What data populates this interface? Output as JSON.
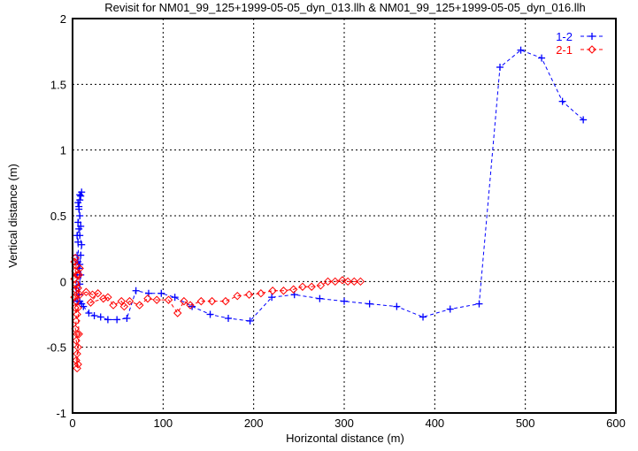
{
  "chart_data": {
    "type": "line",
    "title": "Revisit for NM01_99_125+1999-05-05_dyn_013.llh & NM01_99_125+1999-05-05_dyn_016.llh",
    "xlabel": "Horizontal distance (m)",
    "ylabel": "Vertical distance (m)",
    "xlim": [
      0,
      600
    ],
    "ylim": [
      -1,
      2
    ],
    "xticks": [
      "0",
      "100",
      "200",
      "300",
      "400",
      "500",
      "600"
    ],
    "yticks": [
      "-1",
      "-0.5",
      "0",
      "0.5",
      "1",
      "1.5",
      "2"
    ],
    "grid": true,
    "legend_position": "top-right",
    "series": [
      {
        "name": "1-2",
        "color": "#0000ff",
        "marker": "plus",
        "points": [
          [
            5,
            -0.15
          ],
          [
            4,
            -0.05
          ],
          [
            5,
            0.05
          ],
          [
            6,
            0.15
          ],
          [
            5,
            0.2
          ],
          [
            7,
            0.1
          ],
          [
            6,
            0.3
          ],
          [
            5,
            0.35
          ],
          [
            7,
            0.4
          ],
          [
            6,
            0.45
          ],
          [
            8,
            0.5
          ],
          [
            7,
            0.55
          ],
          [
            6,
            0.6
          ],
          [
            8,
            0.62
          ],
          [
            9,
            0.65
          ],
          [
            10,
            0.68
          ],
          [
            8,
            0.66
          ],
          [
            7,
            0.57
          ],
          [
            9,
            0.42
          ],
          [
            8,
            0.35
          ],
          [
            10,
            0.28
          ],
          [
            9,
            0.2
          ],
          [
            8,
            0.13
          ],
          [
            9,
            0.05
          ],
          [
            8,
            -0.02
          ],
          [
            7,
            -0.1
          ],
          [
            8,
            -0.15
          ],
          [
            10,
            -0.17
          ],
          [
            12,
            -0.19
          ],
          [
            18,
            -0.24
          ],
          [
            24,
            -0.26
          ],
          [
            31,
            -0.27
          ],
          [
            39,
            -0.29
          ],
          [
            49,
            -0.29
          ],
          [
            60,
            -0.28
          ],
          [
            70,
            -0.07
          ],
          [
            84,
            -0.09
          ],
          [
            98,
            -0.09
          ],
          [
            113,
            -0.12
          ],
          [
            132,
            -0.19
          ],
          [
            152,
            -0.25
          ],
          [
            172,
            -0.28
          ],
          [
            196,
            -0.3
          ],
          [
            220,
            -0.12
          ],
          [
            245,
            -0.1
          ],
          [
            273,
            -0.13
          ],
          [
            300,
            -0.15
          ],
          [
            328,
            -0.17
          ],
          [
            358,
            -0.19
          ],
          [
            387,
            -0.27
          ],
          [
            417,
            -0.21
          ],
          [
            449,
            -0.17
          ],
          [
            472,
            1.63
          ],
          [
            495,
            1.76
          ],
          [
            518,
            1.7
          ],
          [
            541,
            1.37
          ],
          [
            564,
            1.23
          ]
        ]
      },
      {
        "name": "2-1",
        "color": "#ff0000",
        "marker": "diamond",
        "points": [
          [
            3,
            0.18
          ],
          [
            2,
            0.15
          ],
          [
            4,
            0.12
          ],
          [
            3,
            0.08
          ],
          [
            5,
            0.05
          ],
          [
            2,
            0.02
          ],
          [
            4,
            -0.02
          ],
          [
            3,
            -0.06
          ],
          [
            5,
            -0.1
          ],
          [
            2,
            -0.12
          ],
          [
            4,
            -0.15
          ],
          [
            3,
            -0.2
          ],
          [
            5,
            -0.25
          ],
          [
            4,
            -0.3
          ],
          [
            3,
            -0.36
          ],
          [
            5,
            -0.4
          ],
          [
            4,
            -0.45
          ],
          [
            6,
            -0.5
          ],
          [
            5,
            -0.55
          ],
          [
            4,
            -0.6
          ],
          [
            6,
            -0.63
          ],
          [
            5,
            -0.66
          ],
          [
            7,
            -0.4
          ],
          [
            6,
            -0.2
          ],
          [
            7,
            0.05
          ],
          [
            8,
            0.1
          ],
          [
            6,
            -0.05
          ],
          [
            8,
            -0.1
          ],
          [
            15,
            -0.08
          ],
          [
            22,
            -0.1
          ],
          [
            28,
            -0.09
          ],
          [
            20,
            -0.16
          ],
          [
            34,
            -0.13
          ],
          [
            39,
            -0.12
          ],
          [
            45,
            -0.18
          ],
          [
            54,
            -0.15
          ],
          [
            57,
            -0.19
          ],
          [
            63,
            -0.15
          ],
          [
            74,
            -0.18
          ],
          [
            83,
            -0.13
          ],
          [
            93,
            -0.14
          ],
          [
            106,
            -0.14
          ],
          [
            116,
            -0.24
          ],
          [
            123,
            -0.15
          ],
          [
            130,
            -0.18
          ],
          [
            142,
            -0.15
          ],
          [
            154,
            -0.15
          ],
          [
            169,
            -0.15
          ],
          [
            182,
            -0.11
          ],
          [
            195,
            -0.1
          ],
          [
            208,
            -0.09
          ],
          [
            221,
            -0.07
          ],
          [
            233,
            -0.07
          ],
          [
            244,
            -0.06
          ],
          [
            254,
            -0.04
          ],
          [
            264,
            -0.04
          ],
          [
            274,
            -0.03
          ],
          [
            282,
            0.0
          ],
          [
            290,
            0.0
          ],
          [
            298,
            0.01
          ],
          [
            304,
            0.0
          ],
          [
            311,
            0.0
          ],
          [
            318,
            0.0
          ]
        ]
      }
    ]
  }
}
